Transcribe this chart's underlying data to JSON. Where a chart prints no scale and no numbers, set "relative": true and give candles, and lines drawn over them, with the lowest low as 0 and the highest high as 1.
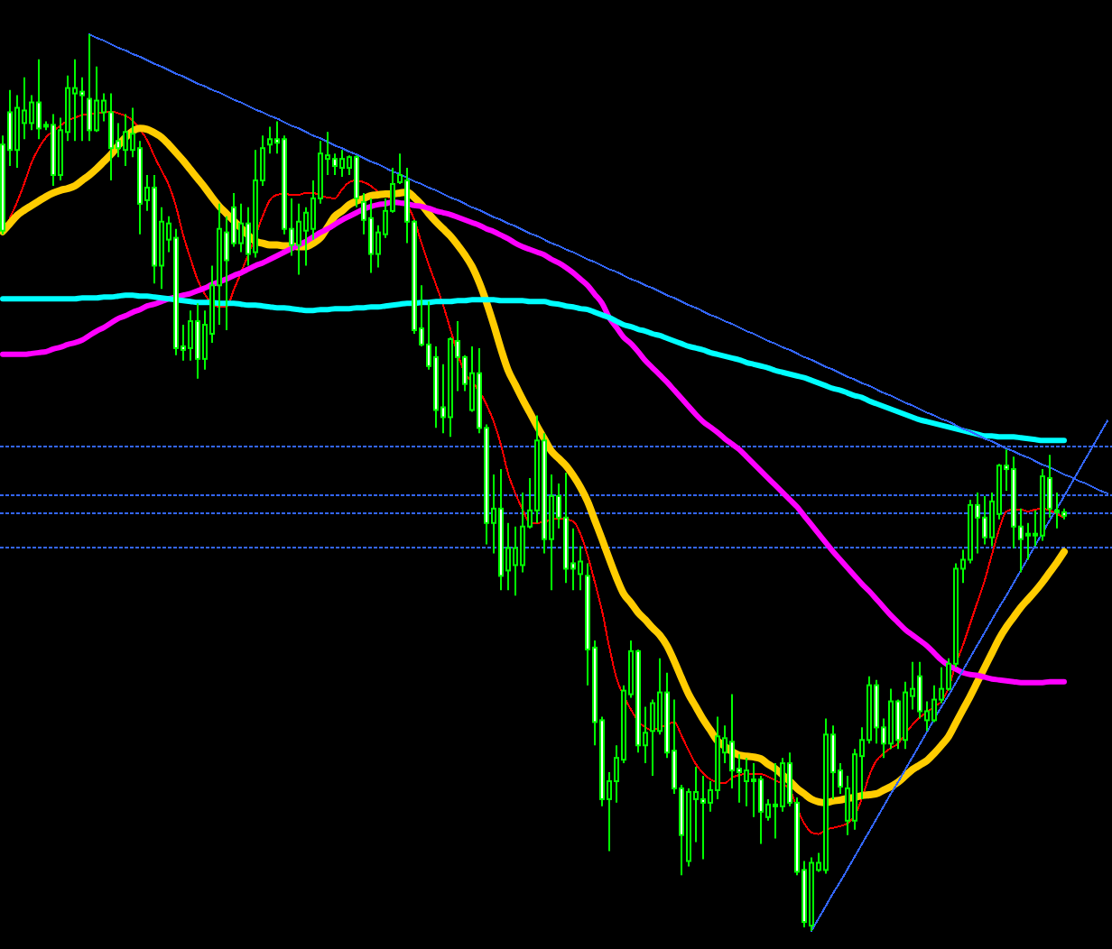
{
  "chart_data": {
    "type": "candlestick",
    "relative": true,
    "color": "#00ff00",
    "categories": [
      null,
      null,
      null,
      null,
      null,
      null,
      null,
      null,
      null,
      null,
      null,
      null,
      null,
      null,
      null,
      null,
      null,
      null,
      null,
      null,
      null,
      null,
      null,
      null,
      null,
      null,
      null,
      null,
      null,
      null,
      null,
      null,
      null,
      null,
      null,
      null,
      null,
      null,
      null,
      null,
      null,
      null,
      null,
      null,
      null,
      null,
      null,
      null,
      null,
      null,
      null,
      null,
      null,
      null,
      null,
      null,
      null,
      null,
      null,
      null,
      null,
      null,
      null,
      null,
      null,
      null,
      null,
      null,
      null,
      null,
      null,
      null,
      null,
      null,
      null,
      null,
      null,
      null,
      null,
      null,
      null,
      null,
      null,
      null,
      null,
      null,
      null,
      null,
      null,
      null,
      null,
      null,
      null,
      null,
      null,
      null,
      null,
      null,
      null,
      null,
      null,
      null,
      null,
      null,
      null,
      null,
      null,
      null,
      null,
      null,
      null,
      null,
      null,
      null,
      null,
      null,
      null,
      null,
      null,
      null,
      null,
      null,
      null,
      null,
      null,
      null,
      null,
      null,
      null,
      null,
      null,
      null,
      null,
      null,
      null,
      null,
      null,
      null,
      null,
      null,
      null,
      null,
      null,
      null,
      null,
      null,
      null,
      null,
      null,
      null,
      null,
      null,
      null,
      null
    ],
    "ohlc": [
      [
        0.877,
        0.887,
        0.777,
        0.781
      ],
      [
        0.913,
        0.938,
        0.853,
        0.871
      ],
      [
        0.871,
        0.932,
        0.851,
        0.918
      ],
      [
        0.901,
        0.952,
        0.883,
        0.915
      ],
      [
        0.901,
        0.932,
        0.893,
        0.924
      ],
      [
        0.924,
        0.972,
        0.883,
        0.895
      ],
      [
        0.899,
        0.903,
        0.893,
        0.897
      ],
      [
        0.899,
        0.911,
        0.831,
        0.843
      ],
      [
        0.843,
        0.907,
        0.837,
        0.893
      ],
      [
        0.891,
        0.954,
        0.881,
        0.94
      ],
      [
        0.934,
        0.972,
        0.881,
        0.94
      ],
      [
        0.936,
        0.952,
        0.881,
        0.932
      ],
      [
        0.928,
        1.0,
        0.881,
        0.893
      ],
      [
        0.893,
        0.964,
        0.891,
        0.926
      ],
      [
        0.913,
        0.934,
        0.903,
        0.926
      ],
      [
        0.913,
        0.934,
        0.837,
        0.873
      ],
      [
        0.881,
        0.901,
        0.863,
        0.873
      ],
      [
        0.871,
        0.911,
        0.853,
        0.891
      ],
      [
        0.871,
        0.918,
        0.863,
        0.889
      ],
      [
        0.873,
        0.881,
        0.777,
        0.811
      ],
      [
        0.815,
        0.843,
        0.803,
        0.829
      ],
      [
        0.829,
        0.843,
        0.722,
        0.742
      ],
      [
        0.742,
        0.807,
        0.716,
        0.791
      ],
      [
        0.771,
        0.797,
        0.757,
        0.789
      ],
      [
        0.773,
        0.783,
        0.642,
        0.65
      ],
      [
        0.652,
        0.676,
        0.636,
        0.648
      ],
      [
        0.65,
        0.692,
        0.636,
        0.68
      ],
      [
        0.68,
        0.7,
        0.616,
        0.638
      ],
      [
        0.638,
        0.692,
        0.626,
        0.676
      ],
      [
        0.666,
        0.742,
        0.656,
        0.72
      ],
      [
        0.72,
        0.811,
        0.676,
        0.783
      ],
      [
        0.779,
        0.797,
        0.67,
        0.748
      ],
      [
        0.807,
        0.823,
        0.763,
        0.767
      ],
      [
        0.767,
        0.811,
        0.757,
        0.789
      ],
      [
        0.789,
        0.807,
        0.742,
        0.755
      ],
      [
        0.757,
        0.871,
        0.751,
        0.837
      ],
      [
        0.837,
        0.887,
        0.831,
        0.873
      ],
      [
        0.877,
        0.897,
        0.867,
        0.883
      ],
      [
        0.883,
        0.903,
        0.867,
        0.879
      ],
      [
        0.883,
        0.887,
        0.777,
        0.783
      ],
      [
        0.783,
        0.817,
        0.753,
        0.765
      ],
      [
        0.765,
        0.811,
        0.732,
        0.791
      ],
      [
        0.781,
        0.807,
        0.742,
        0.801
      ],
      [
        0.783,
        0.837,
        0.771,
        0.817
      ],
      [
        0.817,
        0.881,
        0.811,
        0.867
      ],
      [
        0.861,
        0.891,
        0.843,
        0.865
      ],
      [
        0.861,
        0.867,
        0.843,
        0.853
      ],
      [
        0.851,
        0.871,
        0.841,
        0.861
      ],
      [
        0.851,
        0.865,
        0.843,
        0.863
      ],
      [
        0.863,
        0.865,
        0.807,
        0.817
      ],
      [
        0.813,
        0.823,
        0.777,
        0.793
      ],
      [
        0.795,
        0.817,
        0.734,
        0.755
      ],
      [
        0.755,
        0.787,
        0.74,
        0.779
      ],
      [
        0.777,
        0.817,
        0.773,
        0.803
      ],
      [
        0.803,
        0.851,
        0.801,
        0.833
      ],
      [
        0.835,
        0.867,
        0.833,
        0.843
      ],
      [
        0.837,
        0.851,
        0.767,
        0.791
      ],
      [
        0.791,
        0.793,
        0.666,
        0.67
      ],
      [
        0.672,
        0.72,
        0.652,
        0.654
      ],
      [
        0.654,
        0.702,
        0.626,
        0.63
      ],
      [
        0.64,
        0.652,
        0.561,
        0.581
      ],
      [
        0.584,
        0.632,
        0.555,
        0.573
      ],
      [
        0.573,
        0.662,
        0.551,
        0.66
      ],
      [
        0.658,
        0.68,
        0.602,
        0.64
      ],
      [
        0.64,
        0.642,
        0.602,
        0.61
      ],
      [
        0.581,
        0.652,
        0.579,
        0.622
      ],
      [
        0.622,
        0.65,
        0.555,
        0.561
      ],
      [
        0.561,
        0.565,
        0.431,
        0.455
      ],
      [
        0.455,
        0.509,
        0.421,
        0.471
      ],
      [
        0.471,
        0.515,
        0.38,
        0.396
      ],
      [
        0.402,
        0.455,
        0.38,
        0.427
      ],
      [
        0.408,
        0.451,
        0.374,
        0.427
      ],
      [
        0.408,
        0.489,
        0.4,
        0.451
      ],
      [
        0.451,
        0.505,
        0.449,
        0.469
      ],
      [
        0.469,
        0.575,
        0.455,
        0.547
      ],
      [
        0.547,
        0.555,
        0.421,
        0.437
      ],
      [
        0.437,
        0.509,
        0.38,
        0.485
      ],
      [
        0.485,
        0.499,
        0.449,
        0.461
      ],
      [
        0.461,
        0.511,
        0.388,
        0.404
      ],
      [
        0.41,
        0.449,
        0.38,
        0.404
      ],
      [
        0.398,
        0.429,
        0.38,
        0.412
      ],
      [
        0.396,
        0.41,
        0.274,
        0.314
      ],
      [
        0.316,
        0.324,
        0.207,
        0.233
      ],
      [
        0.235,
        0.239,
        0.139,
        0.147
      ],
      [
        0.147,
        0.177,
        0.089,
        0.167
      ],
      [
        0.167,
        0.207,
        0.143,
        0.193
      ],
      [
        0.191,
        0.274,
        0.187,
        0.268
      ],
      [
        0.264,
        0.324,
        0.26,
        0.312
      ],
      [
        0.312,
        0.314,
        0.199,
        0.207
      ],
      [
        0.207,
        0.25,
        0.187,
        0.221
      ],
      [
        0.223,
        0.258,
        0.173,
        0.254
      ],
      [
        0.223,
        0.304,
        0.219,
        0.266
      ],
      [
        0.266,
        0.288,
        0.193,
        0.199
      ],
      [
        0.201,
        0.258,
        0.153,
        0.159
      ],
      [
        0.159,
        0.163,
        0.062,
        0.107
      ],
      [
        0.078,
        0.159,
        0.072,
        0.155
      ],
      [
        0.147,
        0.183,
        0.099,
        0.155
      ],
      [
        0.147,
        0.173,
        0.08,
        0.143
      ],
      [
        0.143,
        0.167,
        0.133,
        0.157
      ],
      [
        0.157,
        0.239,
        0.147,
        0.217
      ],
      [
        0.199,
        0.229,
        0.187,
        0.215
      ],
      [
        0.211,
        0.264,
        0.159,
        0.179
      ],
      [
        0.181,
        0.197,
        0.143,
        0.177
      ],
      [
        0.167,
        0.193,
        0.139,
        0.179
      ],
      [
        0.167,
        0.187,
        0.127,
        0.169
      ],
      [
        0.169,
        0.173,
        0.097,
        0.133
      ],
      [
        0.127,
        0.147,
        0.123,
        0.141
      ],
      [
        0.139,
        0.187,
        0.103,
        0.141
      ],
      [
        0.139,
        0.193,
        0.133,
        0.187
      ],
      [
        0.187,
        0.199,
        0.139,
        0.143
      ],
      [
        0.143,
        0.149,
        0.062,
        0.066
      ],
      [
        0.068,
        0.078,
        0.004,
        0.01
      ],
      [
        0.006,
        0.082,
        0.0,
        0.076
      ],
      [
        0.068,
        0.087,
        0.066,
        0.076
      ],
      [
        0.068,
        0.237,
        0.064,
        0.219
      ],
      [
        0.219,
        0.229,
        0.147,
        0.177
      ],
      [
        0.179,
        0.187,
        0.153,
        0.161
      ],
      [
        0.123,
        0.173,
        0.107,
        0.159
      ],
      [
        0.123,
        0.203,
        0.113,
        0.197
      ],
      [
        0.195,
        0.227,
        0.147,
        0.213
      ],
      [
        0.213,
        0.284,
        0.209,
        0.274
      ],
      [
        0.274,
        0.28,
        0.209,
        0.227
      ],
      [
        0.227,
        0.237,
        0.193,
        0.209
      ],
      [
        0.209,
        0.27,
        0.203,
        0.256
      ],
      [
        0.256,
        0.258,
        0.203,
        0.213
      ],
      [
        0.213,
        0.278,
        0.203,
        0.266
      ],
      [
        0.262,
        0.3,
        0.247,
        0.27
      ],
      [
        0.284,
        0.3,
        0.237,
        0.245
      ],
      [
        0.235,
        0.256,
        0.223,
        0.245
      ],
      [
        0.235,
        0.274,
        0.233,
        0.258
      ],
      [
        0.258,
        0.294,
        0.254,
        0.27
      ],
      [
        0.27,
        0.304,
        0.268,
        0.298
      ],
      [
        0.298,
        0.41,
        0.294,
        0.404
      ],
      [
        0.404,
        0.425,
        0.388,
        0.414
      ],
      [
        0.414,
        0.481,
        0.41,
        0.475
      ],
      [
        0.475,
        0.489,
        0.421,
        0.461
      ],
      [
        0.461,
        0.485,
        0.431,
        0.439
      ],
      [
        0.439,
        0.489,
        0.429,
        0.479
      ],
      [
        0.465,
        0.521,
        0.459,
        0.519
      ],
      [
        0.519,
        0.537,
        0.491,
        0.515
      ],
      [
        0.515,
        0.529,
        0.427,
        0.451
      ],
      [
        0.451,
        0.471,
        0.4,
        0.437
      ],
      [
        0.443,
        0.455,
        0.414,
        0.441
      ],
      [
        0.441,
        0.469,
        0.429,
        0.443
      ],
      [
        0.441,
        0.515,
        0.435,
        0.507
      ],
      [
        0.505,
        0.531,
        0.461,
        0.471
      ],
      [
        0.469,
        0.489,
        0.449,
        0.467
      ],
      [
        0.467,
        0.471,
        0.459,
        0.463
      ],
      null,
      null,
      null,
      null,
      null,
      null
    ],
    "series": [
      {
        "type": "line",
        "color": "#ff0000",
        "values": [
          0.777,
          0.795,
          0.813,
          0.834,
          0.857,
          0.873,
          0.885,
          0.892,
          0.898,
          0.904,
          0.907,
          0.91,
          0.911,
          0.912,
          0.913,
          0.914,
          0.912,
          0.909,
          0.904,
          0.894,
          0.882,
          0.864,
          0.848,
          0.832,
          0.808,
          0.776,
          0.75,
          0.726,
          0.71,
          0.7,
          0.696,
          0.696,
          0.715,
          0.734,
          0.754,
          0.775,
          0.797,
          0.815,
          0.821,
          0.822,
          0.821,
          0.821,
          0.823,
          0.823,
          0.82,
          0.818,
          0.817,
          0.827,
          0.835,
          0.837,
          0.835,
          0.831,
          0.824,
          0.82,
          0.816,
          0.812,
          0.809,
          0.793,
          0.767,
          0.743,
          0.721,
          0.698,
          0.671,
          0.644,
          0.622,
          0.612,
          0.602,
          0.587,
          0.568,
          0.542,
          0.51,
          0.488,
          0.47,
          0.455,
          0.455,
          0.456,
          0.459,
          0.46,
          0.459,
          0.457,
          0.443,
          0.419,
          0.389,
          0.357,
          0.317,
          0.282,
          0.262,
          0.247,
          0.234,
          0.227,
          0.224,
          0.227,
          0.23,
          0.233,
          0.218,
          0.201,
          0.186,
          0.176,
          0.169,
          0.166,
          0.165,
          0.171,
          0.174,
          0.175,
          0.175,
          0.175,
          0.172,
          0.168,
          0.164,
          0.158,
          0.137,
          0.12,
          0.11,
          0.108,
          0.113,
          0.115,
          0.117,
          0.12,
          0.129,
          0.148,
          0.173,
          0.19,
          0.198,
          0.204,
          0.209,
          0.22,
          0.23,
          0.238,
          0.244,
          0.25,
          0.256,
          0.271,
          0.298,
          0.319,
          0.343,
          0.367,
          0.391,
          0.42,
          0.448,
          0.468,
          0.47,
          0.47,
          0.468,
          0.47,
          0.471,
          0.469,
          0.465,
          0.461,
          null,
          null,
          null,
          null,
          null,
          null
        ]
      },
      {
        "type": "line",
        "color": "#ffcc00",
        "values": [
          0.78,
          0.789,
          0.798,
          0.804,
          0.809,
          0.814,
          0.819,
          0.823,
          0.826,
          0.828,
          0.831,
          0.837,
          0.843,
          0.85,
          0.858,
          0.866,
          0.876,
          0.885,
          0.892,
          0.895,
          0.894,
          0.89,
          0.885,
          0.877,
          0.868,
          0.859,
          0.849,
          0.839,
          0.829,
          0.818,
          0.808,
          0.8,
          0.792,
          0.784,
          0.776,
          0.769,
          0.767,
          0.765,
          0.765,
          0.764,
          0.764,
          0.763,
          0.763,
          0.767,
          0.773,
          0.785,
          0.797,
          0.803,
          0.81,
          0.814,
          0.817,
          0.82,
          0.821,
          0.822,
          0.822,
          0.823,
          0.824,
          0.818,
          0.81,
          0.8,
          0.791,
          0.783,
          0.775,
          0.765,
          0.754,
          0.741,
          0.723,
          0.701,
          0.676,
          0.649,
          0.625,
          0.609,
          0.593,
          0.578,
          0.563,
          0.549,
          0.535,
          0.527,
          0.519,
          0.508,
          0.495,
          0.479,
          0.458,
          0.437,
          0.415,
          0.394,
          0.376,
          0.366,
          0.355,
          0.347,
          0.338,
          0.33,
          0.318,
          0.301,
          0.282,
          0.264,
          0.25,
          0.236,
          0.224,
          0.212,
          0.206,
          0.2,
          0.196,
          0.195,
          0.194,
          0.192,
          0.186,
          0.181,
          0.174,
          0.167,
          0.159,
          0.153,
          0.147,
          0.144,
          0.143,
          0.145,
          0.146,
          0.148,
          0.149,
          0.151,
          0.152,
          0.153,
          0.157,
          0.161,
          0.166,
          0.173,
          0.18,
          0.185,
          0.19,
          0.198,
          0.207,
          0.217,
          0.232,
          0.247,
          0.262,
          0.278,
          0.294,
          0.31,
          0.326,
          0.339,
          0.35,
          0.361,
          0.37,
          0.379,
          0.389,
          0.4,
          0.411,
          0.423,
          null,
          null,
          null,
          null,
          null,
          null
        ]
      },
      {
        "type": "line",
        "color": "#ff00ff",
        "values": [
          0.643,
          0.643,
          0.643,
          0.643,
          0.644,
          0.645,
          0.646,
          0.649,
          0.651,
          0.654,
          0.656,
          0.659,
          0.664,
          0.669,
          0.673,
          0.678,
          0.683,
          0.686,
          0.69,
          0.693,
          0.697,
          0.699,
          0.702,
          0.705,
          0.707,
          0.709,
          0.711,
          0.714,
          0.717,
          0.721,
          0.724,
          0.727,
          0.731,
          0.734,
          0.738,
          0.742,
          0.745,
          0.749,
          0.753,
          0.757,
          0.761,
          0.765,
          0.769,
          0.774,
          0.779,
          0.783,
          0.788,
          0.793,
          0.797,
          0.801,
          0.805,
          0.808,
          0.81,
          0.811,
          0.813,
          0.812,
          0.811,
          0.809,
          0.808,
          0.806,
          0.803,
          0.801,
          0.799,
          0.796,
          0.793,
          0.79,
          0.787,
          0.783,
          0.78,
          0.776,
          0.772,
          0.767,
          0.763,
          0.76,
          0.757,
          0.754,
          0.749,
          0.745,
          0.74,
          0.734,
          0.727,
          0.72,
          0.71,
          0.7,
          0.684,
          0.673,
          0.662,
          0.655,
          0.646,
          0.636,
          0.628,
          0.62,
          0.612,
          0.603,
          0.594,
          0.585,
          0.576,
          0.568,
          0.562,
          0.556,
          0.549,
          0.543,
          0.537,
          0.529,
          0.521,
          0.513,
          0.505,
          0.497,
          0.489,
          0.481,
          0.473,
          0.463,
          0.453,
          0.443,
          0.433,
          0.423,
          0.414,
          0.405,
          0.396,
          0.387,
          0.379,
          0.37,
          0.361,
          0.352,
          0.344,
          0.336,
          0.33,
          0.324,
          0.318,
          0.31,
          0.302,
          0.296,
          0.292,
          0.288,
          0.286,
          0.285,
          0.283,
          0.281,
          0.28,
          0.279,
          0.278,
          0.277,
          0.277,
          0.277,
          0.277,
          0.278,
          0.278,
          0.278,
          null,
          null,
          null,
          null,
          null,
          null
        ]
      },
      {
        "type": "line",
        "color": "#00ffff",
        "values": [
          0.705,
          0.705,
          0.705,
          0.705,
          0.705,
          0.705,
          0.705,
          0.705,
          0.705,
          0.705,
          0.705,
          0.706,
          0.706,
          0.706,
          0.707,
          0.707,
          0.708,
          0.709,
          0.709,
          0.708,
          0.708,
          0.707,
          0.706,
          0.705,
          0.704,
          0.703,
          0.702,
          0.701,
          0.701,
          0.701,
          0.7,
          0.7,
          0.7,
          0.699,
          0.698,
          0.698,
          0.697,
          0.696,
          0.695,
          0.695,
          0.694,
          0.693,
          0.692,
          0.692,
          0.693,
          0.693,
          0.694,
          0.694,
          0.694,
          0.695,
          0.695,
          0.696,
          0.696,
          0.697,
          0.698,
          0.699,
          0.7,
          0.7,
          0.701,
          0.701,
          0.702,
          0.702,
          0.702,
          0.703,
          0.703,
          0.704,
          0.704,
          0.704,
          0.704,
          0.703,
          0.703,
          0.703,
          0.703,
          0.702,
          0.702,
          0.702,
          0.7,
          0.699,
          0.697,
          0.696,
          0.694,
          0.693,
          0.69,
          0.687,
          0.684,
          0.68,
          0.676,
          0.674,
          0.671,
          0.669,
          0.666,
          0.664,
          0.661,
          0.658,
          0.655,
          0.652,
          0.65,
          0.648,
          0.645,
          0.643,
          0.641,
          0.639,
          0.637,
          0.634,
          0.632,
          0.63,
          0.628,
          0.625,
          0.623,
          0.621,
          0.619,
          0.617,
          0.614,
          0.611,
          0.608,
          0.605,
          0.603,
          0.6,
          0.597,
          0.595,
          0.591,
          0.588,
          0.585,
          0.582,
          0.579,
          0.576,
          0.573,
          0.57,
          0.568,
          0.566,
          0.564,
          0.562,
          0.56,
          0.558,
          0.556,
          0.554,
          0.552,
          0.552,
          0.551,
          0.551,
          0.551,
          0.55,
          0.549,
          0.548,
          0.547,
          0.547,
          0.547,
          0.547,
          null,
          null,
          null,
          null,
          null,
          null
        ]
      },
      {
        "type": "line",
        "color": "#3366ff",
        "values": [
          null,
          null,
          null,
          null,
          null,
          null,
          null,
          null,
          null,
          null,
          null,
          null,
          1.0,
          0.996,
          0.993,
          0.989,
          0.985,
          0.982,
          0.978,
          0.975,
          0.971,
          0.967,
          0.964,
          0.96,
          0.956,
          0.953,
          0.949,
          0.945,
          0.942,
          0.938,
          0.935,
          0.931,
          0.927,
          0.924,
          0.92,
          0.916,
          0.913,
          0.909,
          0.906,
          0.902,
          0.898,
          0.895,
          0.891,
          0.887,
          0.884,
          0.88,
          0.876,
          0.873,
          0.869,
          0.866,
          0.862,
          0.858,
          0.855,
          0.851,
          0.847,
          0.844,
          0.84,
          0.836,
          0.833,
          0.829,
          0.826,
          0.822,
          0.818,
          0.815,
          0.811,
          0.807,
          0.804,
          0.8,
          0.796,
          0.793,
          0.789,
          0.786,
          0.782,
          0.778,
          0.775,
          0.771,
          0.767,
          0.764,
          0.76,
          0.757,
          0.753,
          0.749,
          0.746,
          0.742,
          0.738,
          0.735,
          0.731,
          0.727,
          0.724,
          0.72,
          0.717,
          0.713,
          0.709,
          0.706,
          0.702,
          0.698,
          0.695,
          0.691,
          0.687,
          0.684,
          0.68,
          0.677,
          0.673,
          0.669,
          0.666,
          0.662,
          0.658,
          0.655,
          0.651,
          0.648,
          0.644,
          0.64,
          0.637,
          0.633,
          0.629,
          0.626,
          0.622,
          0.618,
          0.615,
          0.611,
          0.608,
          0.604,
          0.6,
          0.597,
          0.593,
          0.589,
          0.586,
          0.582,
          0.578,
          0.575,
          0.571,
          0.568,
          0.564,
          0.56,
          0.557,
          0.553,
          0.549,
          0.546,
          0.542,
          0.538,
          0.535,
          0.531,
          0.528,
          0.524,
          0.52,
          0.517,
          0.513,
          0.509,
          0.506,
          0.502,
          0.499,
          0.495,
          0.491,
          0.488
        ]
      },
      {
        "type": "line",
        "color": "#3366ff",
        "values": [
          null,
          null,
          null,
          null,
          null,
          null,
          null,
          null,
          null,
          null,
          null,
          null,
          null,
          null,
          null,
          null,
          null,
          null,
          null,
          null,
          null,
          null,
          null,
          null,
          null,
          null,
          null,
          null,
          null,
          null,
          null,
          null,
          null,
          null,
          null,
          null,
          null,
          null,
          null,
          null,
          null,
          null,
          null,
          null,
          null,
          null,
          null,
          null,
          null,
          null,
          null,
          null,
          null,
          null,
          null,
          null,
          null,
          null,
          null,
          null,
          null,
          null,
          null,
          null,
          null,
          null,
          null,
          null,
          null,
          null,
          null,
          null,
          null,
          null,
          null,
          null,
          null,
          null,
          null,
          null,
          null,
          null,
          null,
          null,
          null,
          null,
          null,
          null,
          null,
          null,
          null,
          null,
          null,
          null,
          null,
          null,
          null,
          null,
          null,
          null,
          null,
          null,
          null,
          null,
          null,
          null,
          null,
          null,
          null,
          null,
          null,
          null,
          0.0,
          0.014,
          0.028,
          0.042,
          0.055,
          0.069,
          0.083,
          0.097,
          0.111,
          0.125,
          0.139,
          0.153,
          0.166,
          0.18,
          0.194,
          0.208,
          0.222,
          0.236,
          0.25,
          0.263,
          0.277,
          0.291,
          0.305,
          0.319,
          0.333,
          0.347,
          0.361,
          0.374,
          0.388,
          0.402,
          0.416,
          0.43,
          0.444,
          0.458,
          0.471,
          0.485,
          0.499,
          0.513,
          0.527,
          0.541,
          0.555,
          0.569
        ]
      }
    ],
    "ref_lines": [
      {
        "axis": "y",
        "value": 0.541,
        "color": "#3366ff",
        "line_style": "dotted"
      },
      {
        "axis": "y",
        "value": 0.486,
        "color": "#3366ff",
        "line_style": "dotted"
      },
      {
        "axis": "y",
        "value": 0.466,
        "color": "#3366ff",
        "line_style": "dotted"
      },
      {
        "axis": "y",
        "value": 0.428,
        "color": "#3366ff",
        "line_style": "dotted"
      }
    ]
  }
}
